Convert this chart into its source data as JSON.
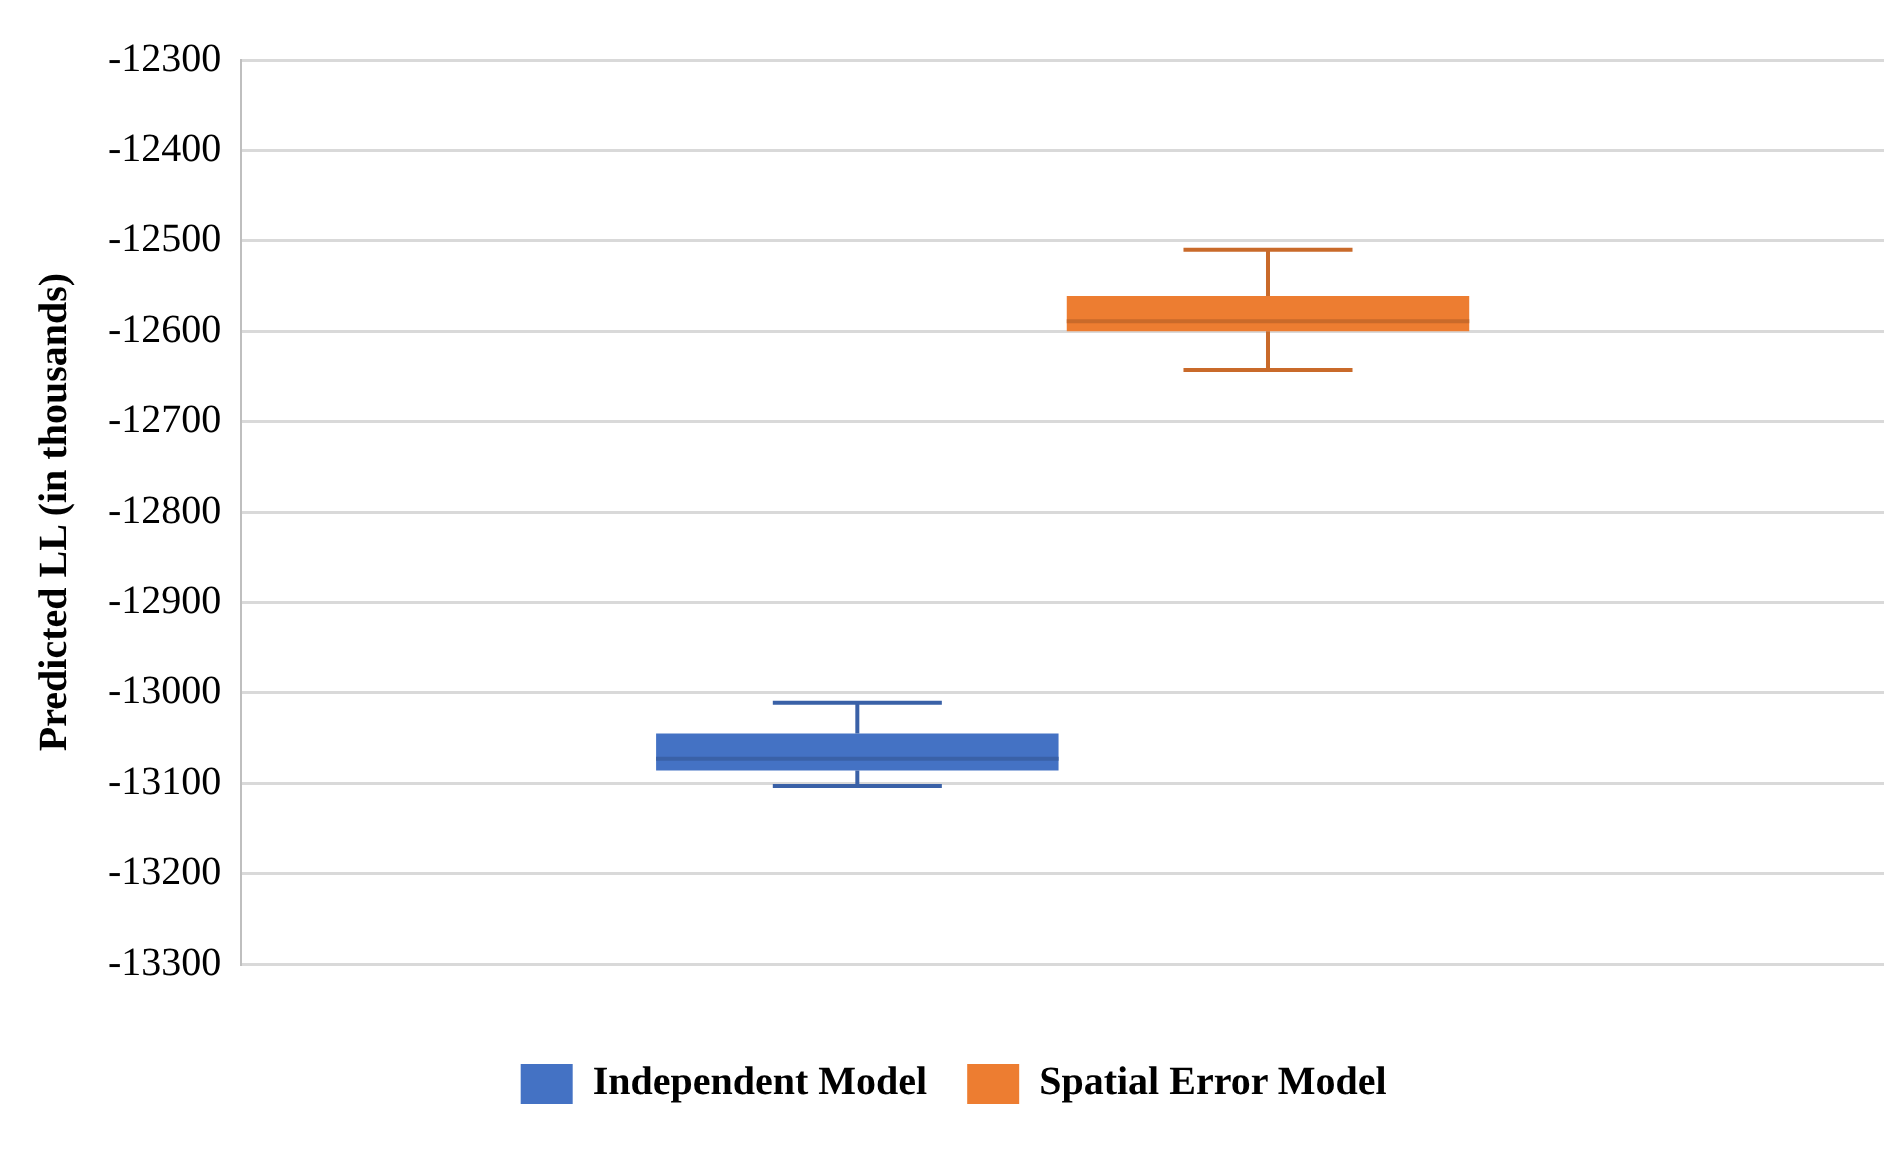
{
  "chart_data": {
    "type": "box",
    "ylabel": "Predicted LL (in thousands)",
    "categories": [
      null
    ],
    "series": [
      {
        "name": "Independent Model",
        "color": "#4472c4",
        "boxes": [
          {
            "low": -13103,
            "q1": -13086,
            "median": -13073,
            "q3": -13045,
            "high": -13011
          }
        ]
      },
      {
        "name": "Spatial Error Model",
        "color": "#ed7d31",
        "boxes": [
          {
            "low": -12643,
            "q1": -12600,
            "median": -12589,
            "q3": -12561,
            "high": -12510
          }
        ]
      }
    ],
    "ylim": [
      -13300,
      -12300
    ],
    "yticks": [
      -13300,
      -13200,
      -13100,
      -13000,
      -12900,
      -12800,
      -12700,
      -12600,
      -12500,
      -12400,
      -12300
    ],
    "grid": "y",
    "legend": "bottom"
  }
}
